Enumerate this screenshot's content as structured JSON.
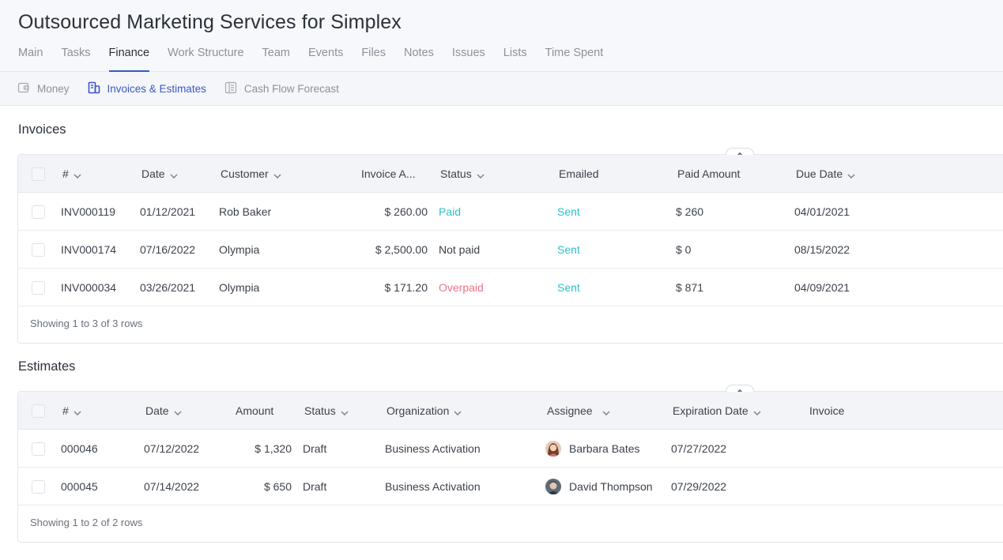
{
  "page_title": "Outsourced Marketing Services for Simplex",
  "tabs": [
    {
      "label": "Main"
    },
    {
      "label": "Tasks"
    },
    {
      "label": "Finance"
    },
    {
      "label": "Work Structure"
    },
    {
      "label": "Team"
    },
    {
      "label": "Events"
    },
    {
      "label": "Files"
    },
    {
      "label": "Notes"
    },
    {
      "label": "Issues"
    },
    {
      "label": "Lists"
    },
    {
      "label": "Time Spent"
    }
  ],
  "active_tab": "Finance",
  "subnav": [
    {
      "label": "Money",
      "icon": "wallet-icon"
    },
    {
      "label": "Invoices & Estimates",
      "icon": "invoice-icon"
    },
    {
      "label": "Cash Flow Forecast",
      "icon": "forecast-icon"
    }
  ],
  "active_subnav": "Invoices & Estimates",
  "invoices": {
    "title": "Invoices",
    "headers": {
      "number": "#",
      "date": "Date",
      "customer": "Customer",
      "amount": "Invoice A...",
      "status": "Status",
      "emailed": "Emailed",
      "paid_amount": "Paid Amount",
      "due_date": "Due Date"
    },
    "rows": [
      {
        "number": "INV000119",
        "date": "01/12/2021",
        "customer": "Rob Baker",
        "amount": "$ 260.00",
        "status": "Paid",
        "emailed": "Sent",
        "paid_amount": "$ 260",
        "due_date": "04/01/2021"
      },
      {
        "number": "INV000174",
        "date": "07/16/2022",
        "customer": "Olympia",
        "amount": "$ 2,500.00",
        "status": "Not paid",
        "emailed": "Sent",
        "paid_amount": "$ 0",
        "due_date": "08/15/2022"
      },
      {
        "number": "INV000034",
        "date": "03/26/2021",
        "customer": "Olympia",
        "amount": "$ 171.20",
        "status": "Overpaid",
        "emailed": "Sent",
        "paid_amount": "$ 871",
        "due_date": "04/09/2021"
      }
    ],
    "footer": "Showing 1 to 3 of 3 rows"
  },
  "estimates": {
    "title": "Estimates",
    "headers": {
      "number": "#",
      "date": "Date",
      "amount": "Amount",
      "status": "Status",
      "organization": "Organization",
      "assignee": "Assignee",
      "expiration_date": "Expiration Date",
      "invoice": "Invoice"
    },
    "rows": [
      {
        "number": "000046",
        "date": "07/12/2022",
        "amount": "$ 1,320",
        "status": "Draft",
        "organization": "Business Activation",
        "assignee": "Barbara Bates",
        "expiration_date": "07/27/2022",
        "invoice": ""
      },
      {
        "number": "000045",
        "date": "07/14/2022",
        "amount": "$ 650",
        "status": "Draft",
        "organization": "Business Activation",
        "assignee": "David Thompson",
        "expiration_date": "07/29/2022",
        "invoice": ""
      }
    ],
    "footer": "Showing 1 to 2 of 2 rows"
  },
  "colors": {
    "accent": "#3b57c4",
    "paid": "#2cc1c8",
    "overpaid": "#f07287"
  }
}
